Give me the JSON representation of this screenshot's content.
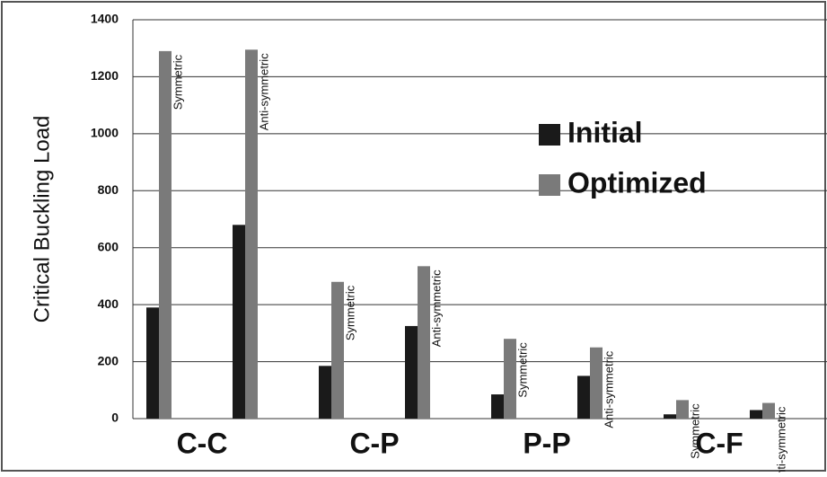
{
  "chart_data": {
    "type": "bar",
    "ylabel": "Critical Buckling Load",
    "groups": [
      "C-C",
      "C-P",
      "P-P",
      "C-F"
    ],
    "categories": [
      "Symmetric",
      "Anti-symmetric",
      "Symmetric",
      "Anti-symmetric",
      "Symmetric",
      "Anti-symmetric",
      "Symmetric",
      "Anti-symmetric"
    ],
    "series": [
      {
        "name": "Initial",
        "color": "#1a1a1a",
        "values": [
          390,
          680,
          185,
          325,
          85,
          150,
          15,
          30
        ]
      },
      {
        "name": "Optimized",
        "color": "#7a7a7a",
        "values": [
          1290,
          1295,
          480,
          535,
          280,
          250,
          65,
          55
        ]
      }
    ],
    "ylim": [
      0,
      1400
    ],
    "yticks": [
      0,
      200,
      400,
      600,
      800,
      1000,
      1200,
      1400
    ],
    "grid": true,
    "legend": "right"
  }
}
